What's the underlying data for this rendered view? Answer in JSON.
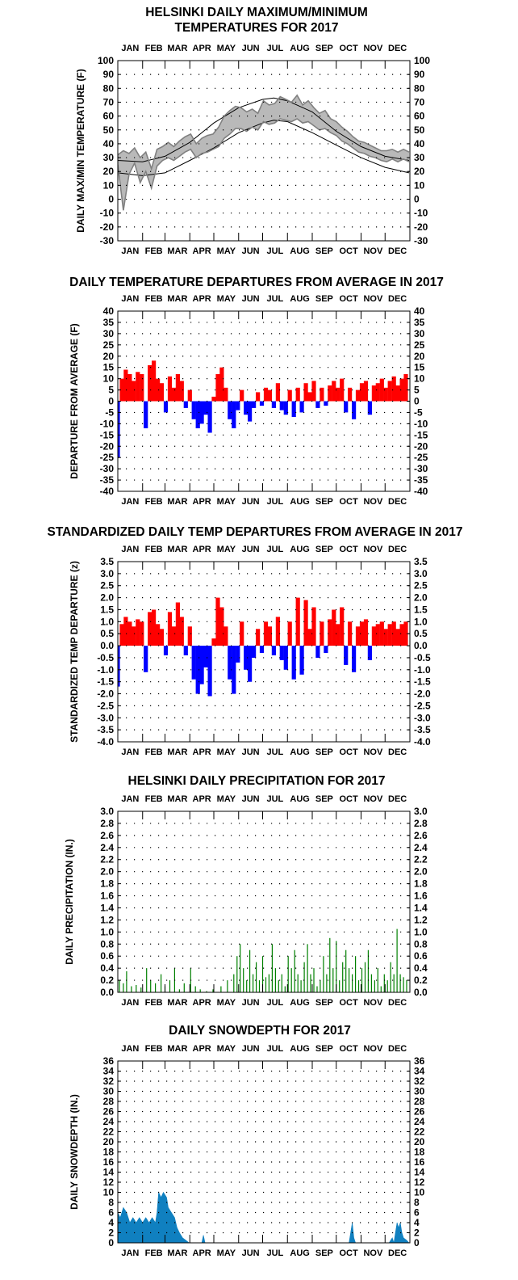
{
  "months": [
    "JAN",
    "FEB",
    "MAR",
    "APR",
    "MAY",
    "JUN",
    "JUL",
    "AUG",
    "SEP",
    "OCT",
    "NOV",
    "DEC"
  ],
  "colors": {
    "obs": "#808080",
    "normal": "#000000",
    "positive": "#ff0000",
    "negative": "#0000ff",
    "precip": "#008000",
    "snow": "#1080c0"
  },
  "chart_data": [
    {
      "type": "line",
      "title": "HELSINKI DAILY MAXIMUM/MINIMUM TEMPERATURES FOR 2017",
      "title_lines": [
        "HELSINKI DAILY MAXIMUM/MINIMUM",
        "TEMPERATURES FOR 2017"
      ],
      "xlabel": "",
      "ylabel": "DAILY MAX/MIN TEMPERATURE (F)",
      "ylim": [
        -30,
        100
      ],
      "yticks": [
        -30,
        -20,
        -10,
        0,
        10,
        20,
        30,
        40,
        50,
        60,
        70,
        80,
        90,
        100
      ],
      "grid": true,
      "x_unit": "day of year",
      "series": [
        {
          "role": "normal_max",
          "x": [
            1,
            32,
            60,
            91,
            121,
            152,
            182,
            196,
            213,
            244,
            274,
            305,
            335,
            365
          ],
          "values": [
            28,
            27,
            31,
            41,
            55,
            66,
            72,
            73,
            71,
            63,
            49,
            38,
            31,
            28
          ]
        },
        {
          "role": "normal_min",
          "x": [
            1,
            32,
            60,
            91,
            121,
            152,
            182,
            196,
            213,
            244,
            274,
            305,
            335,
            365
          ],
          "values": [
            19,
            17,
            19,
            28,
            37,
            48,
            55,
            57,
            56,
            48,
            39,
            30,
            23,
            19
          ]
        },
        {
          "role": "observed_max",
          "x": [
            1,
            8,
            15,
            22,
            29,
            36,
            43,
            50,
            57,
            64,
            71,
            78,
            85,
            92,
            99,
            106,
            113,
            120,
            127,
            134,
            141,
            148,
            155,
            162,
            169,
            176,
            183,
            190,
            197,
            204,
            211,
            218,
            225,
            232,
            239,
            246,
            253,
            260,
            267,
            274,
            281,
            288,
            295,
            302,
            309,
            316,
            323,
            330,
            337,
            344,
            351,
            358,
            365
          ],
          "values": [
            32,
            35,
            33,
            37,
            30,
            34,
            22,
            36,
            38,
            41,
            38,
            42,
            45,
            47,
            40,
            44,
            46,
            47,
            52,
            60,
            64,
            67,
            66,
            63,
            65,
            62,
            71,
            68,
            69,
            74,
            72,
            70,
            75,
            68,
            71,
            66,
            62,
            64,
            58,
            56,
            52,
            49,
            45,
            42,
            41,
            39,
            37,
            35,
            35,
            36,
            34,
            36,
            34
          ]
        },
        {
          "role": "observed_min",
          "x": [
            1,
            8,
            15,
            22,
            29,
            36,
            43,
            50,
            57,
            64,
            71,
            78,
            85,
            92,
            99,
            106,
            113,
            120,
            127,
            134,
            141,
            148,
            155,
            162,
            169,
            176,
            183,
            190,
            197,
            204,
            211,
            218,
            225,
            232,
            239,
            246,
            253,
            260,
            267,
            274,
            281,
            288,
            295,
            302,
            309,
            316,
            323,
            330,
            337,
            344,
            351,
            358,
            365
          ],
          "values": [
            25,
            -8,
            18,
            26,
            12,
            20,
            8,
            24,
            28,
            30,
            28,
            31,
            34,
            36,
            30,
            33,
            34,
            36,
            38,
            44,
            47,
            51,
            51,
            49,
            52,
            50,
            56,
            54,
            55,
            58,
            57,
            56,
            58,
            55,
            56,
            53,
            50,
            51,
            48,
            46,
            42,
            40,
            37,
            34,
            33,
            31,
            30,
            28,
            27,
            29,
            27,
            29,
            27
          ]
        }
      ]
    },
    {
      "type": "bar",
      "title": "DAILY TEMPERATURE DEPARTURES FROM AVERAGE IN 2017",
      "xlabel": "",
      "ylabel": "DEPARTURE FROM AVERAGE (F)",
      "ylim": [
        -40,
        40
      ],
      "yticks": [
        -40,
        -35,
        -30,
        -25,
        -20,
        -15,
        -10,
        -5,
        0,
        5,
        10,
        15,
        20,
        25,
        30,
        35,
        40
      ],
      "grid": true,
      "x_unit": "day of year",
      "x": [
        1,
        6,
        11,
        16,
        21,
        26,
        31,
        36,
        41,
        46,
        51,
        56,
        61,
        66,
        71,
        76,
        81,
        86,
        91,
        96,
        101,
        106,
        111,
        116,
        121,
        126,
        131,
        136,
        141,
        146,
        151,
        156,
        161,
        166,
        171,
        176,
        181,
        186,
        191,
        196,
        201,
        206,
        211,
        216,
        221,
        226,
        231,
        236,
        241,
        246,
        251,
        256,
        261,
        266,
        271,
        276,
        281,
        286,
        291,
        296,
        301,
        306,
        311,
        316,
        321,
        326,
        331,
        336,
        341,
        346,
        351,
        356,
        361
      ],
      "values": [
        -25,
        10,
        14,
        12,
        9,
        13,
        12,
        -12,
        16,
        18,
        10,
        8,
        -5,
        11,
        6,
        12,
        9,
        -3,
        5,
        -8,
        -12,
        -10,
        -6,
        -14,
        2,
        12,
        15,
        6,
        -8,
        -12,
        -4,
        5,
        -6,
        -9,
        -3,
        4,
        -2,
        6,
        5,
        -3,
        8,
        -4,
        -6,
        5,
        -7,
        6,
        -5,
        8,
        4,
        9,
        -3,
        6,
        -2,
        7,
        9,
        6,
        10,
        -5,
        6,
        -8,
        5,
        8,
        9,
        -6,
        7,
        8,
        10,
        6,
        9,
        11,
        7,
        10,
        12
      ]
    },
    {
      "type": "bar",
      "title": "STANDARDIZED DAILY TEMP DEPARTURES FROM AVERAGE IN 2017",
      "xlabel": "",
      "ylabel": "STANDARDIZED TEMP DEPARTURE (z)",
      "ylim": [
        -4.0,
        3.5
      ],
      "yticks": [
        "-4.0",
        "-3.5",
        "-3.0",
        "-2.5",
        "-2.0",
        "-1.5",
        "-1.0",
        "-0.5",
        "0.0",
        "0.5",
        "1.0",
        "1.5",
        "2.0",
        "2.5",
        "3.0",
        "3.5"
      ],
      "grid": true,
      "x_unit": "day of year",
      "x": [
        1,
        6,
        11,
        16,
        21,
        26,
        31,
        36,
        41,
        46,
        51,
        56,
        61,
        66,
        71,
        76,
        81,
        86,
        91,
        96,
        101,
        106,
        111,
        116,
        121,
        126,
        131,
        136,
        141,
        146,
        151,
        156,
        161,
        166,
        171,
        176,
        181,
        186,
        191,
        196,
        201,
        206,
        211,
        216,
        221,
        226,
        231,
        236,
        241,
        246,
        251,
        256,
        261,
        266,
        271,
        276,
        281,
        286,
        291,
        296,
        301,
        306,
        311,
        316,
        321,
        326,
        331,
        336,
        341,
        346,
        351,
        356,
        361
      ],
      "values": [
        -1.7,
        0.9,
        1.2,
        1.0,
        0.8,
        1.1,
        1.0,
        -1.1,
        1.4,
        1.5,
        0.9,
        0.7,
        -0.4,
        1.4,
        0.8,
        1.8,
        1.2,
        -0.4,
        0.8,
        -1.4,
        -2.0,
        -1.6,
        -0.9,
        -2.1,
        0.3,
        2.0,
        1.6,
        0.8,
        -1.4,
        -2.0,
        -0.7,
        1.0,
        -1.0,
        -1.5,
        -0.5,
        0.7,
        -0.3,
        1.0,
        0.8,
        -0.4,
        1.2,
        -0.6,
        -1.0,
        1.0,
        -1.4,
        2.0,
        -1.2,
        1.9,
        0.7,
        1.6,
        -0.5,
        1.0,
        -0.3,
        1.1,
        1.5,
        0.9,
        1.6,
        -0.8,
        1.0,
        -1.1,
        0.8,
        1.0,
        1.1,
        -0.6,
        0.8,
        0.9,
        1.0,
        0.7,
        0.9,
        1.0,
        0.7,
        0.9,
        1.0
      ]
    },
    {
      "type": "bar",
      "title": "HELSINKI DAILY PRECIPITATION FOR 2017",
      "xlabel": "",
      "ylabel": "DAILY PRECIPITATION (IN.)",
      "ylim": [
        0,
        3.0
      ],
      "yticks": [
        "0.0",
        "0.2",
        "0.4",
        "0.6",
        "0.8",
        "1.0",
        "1.2",
        "1.4",
        "1.6",
        "1.8",
        "2.0",
        "2.2",
        "2.4",
        "2.6",
        "2.8",
        "3.0"
      ],
      "grid": true,
      "x_unit": "day of year",
      "x": [
        3,
        8,
        12,
        18,
        24,
        30,
        37,
        42,
        48,
        55,
        60,
        66,
        72,
        78,
        84,
        92,
        98,
        104,
        112,
        120,
        130,
        138,
        146,
        150,
        154,
        158,
        162,
        166,
        170,
        174,
        178,
        182,
        186,
        190,
        194,
        198,
        202,
        206,
        210,
        214,
        218,
        222,
        226,
        230,
        234,
        238,
        242,
        246,
        250,
        254,
        258,
        262,
        266,
        270,
        274,
        278,
        282,
        286,
        290,
        294,
        298,
        302,
        306,
        310,
        314,
        318,
        322,
        326,
        330,
        334,
        338,
        342,
        346,
        350,
        354,
        358,
        362
      ],
      "values": [
        0.2,
        0.15,
        0.35,
        0.1,
        0.12,
        0.08,
        0.4,
        0.2,
        0.15,
        0.3,
        0.1,
        0.2,
        0.4,
        0.05,
        0.15,
        0.4,
        0.1,
        0.05,
        0.02,
        0.05,
        0.1,
        0.2,
        0.3,
        0.6,
        0.8,
        0.4,
        0.2,
        0.7,
        0.3,
        0.5,
        0.2,
        0.6,
        0.25,
        0.3,
        0.8,
        0.4,
        0.2,
        0.3,
        0.1,
        0.6,
        0.4,
        0.7,
        0.3,
        0.2,
        0.5,
        0.8,
        0.3,
        0.4,
        0.1,
        0.2,
        0.6,
        0.3,
        0.9,
        0.4,
        0.85,
        0.2,
        0.5,
        0.7,
        0.4,
        0.3,
        0.6,
        0.2,
        0.4,
        0.5,
        0.7,
        0.3,
        0.2,
        0.4,
        0.1,
        0.3,
        0.2,
        0.5,
        0.3,
        1.05,
        0.3,
        0.25,
        0.2
      ]
    },
    {
      "type": "area",
      "title": "DAILY SNOWDEPTH FOR 2017",
      "xlabel": "",
      "ylabel": "DAILY SNOWDEPTH (IN.)",
      "ylim": [
        0,
        36
      ],
      "yticks": [
        0,
        2,
        4,
        6,
        8,
        10,
        12,
        14,
        16,
        18,
        20,
        22,
        24,
        26,
        28,
        30,
        32,
        34,
        36
      ],
      "grid": true,
      "x_unit": "day of year",
      "x": [
        1,
        4,
        8,
        12,
        16,
        20,
        24,
        28,
        32,
        36,
        40,
        44,
        48,
        50,
        52,
        55,
        58,
        62,
        64,
        68,
        72,
        75,
        78,
        82,
        86,
        90,
        94,
        98,
        102,
        106,
        108,
        110,
        112,
        120,
        290,
        294,
        296,
        298,
        300,
        340,
        344,
        346,
        348,
        350,
        352,
        354,
        356,
        358,
        362,
        365
      ],
      "values": [
        6,
        5,
        7,
        6,
        4,
        5,
        4,
        5,
        4,
        5,
        4,
        5,
        4,
        6,
        10,
        9,
        10,
        9,
        7,
        6,
        5,
        3,
        2,
        1,
        0.5,
        0,
        0,
        0,
        0,
        0,
        1.5,
        0,
        0,
        0,
        0,
        4,
        1,
        0,
        0,
        0,
        1,
        0,
        2,
        4,
        3,
        4,
        2,
        1,
        0.5,
        0
      ]
    }
  ]
}
